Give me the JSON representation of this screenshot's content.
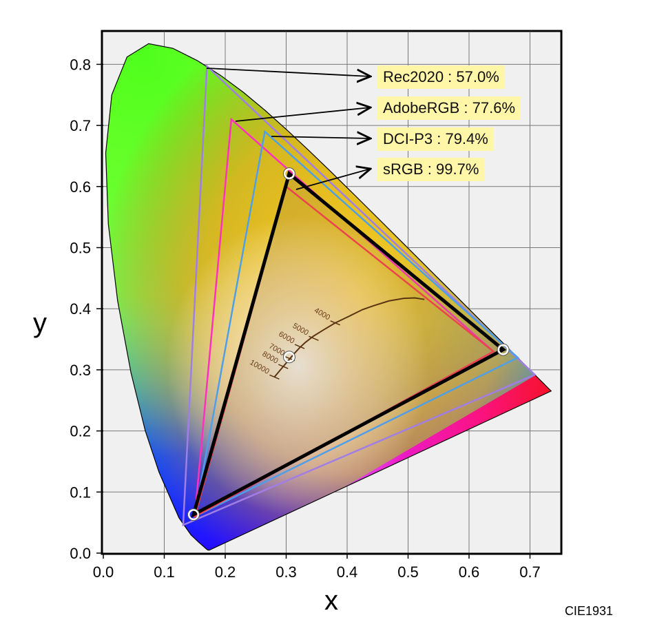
{
  "chart_data": {
    "type": "scatter",
    "title": "",
    "xlabel": "x",
    "ylabel": "y",
    "xlim": [
      0.0,
      0.75
    ],
    "ylim": [
      0.0,
      0.85
    ],
    "grid": true,
    "x_ticks": [
      "0.0",
      "0.1",
      "0.2",
      "0.3",
      "0.4",
      "0.5",
      "0.6",
      "0.7"
    ],
    "y_ticks": [
      "0.0",
      "0.1",
      "0.2",
      "0.3",
      "0.4",
      "0.5",
      "0.6",
      "0.7",
      "0.8"
    ],
    "footnote": "CIE1931",
    "spectral_locus": [
      [
        0.1741,
        0.005
      ],
      [
        0.1738,
        0.0049
      ],
      [
        0.1733,
        0.0048
      ],
      [
        0.1726,
        0.0048
      ],
      [
        0.1714,
        0.0051
      ],
      [
        0.1689,
        0.0069
      ],
      [
        0.1644,
        0.0109
      ],
      [
        0.1566,
        0.0177
      ],
      [
        0.144,
        0.0297
      ],
      [
        0.1241,
        0.0578
      ],
      [
        0.0913,
        0.1327
      ],
      [
        0.0687,
        0.2007
      ],
      [
        0.0454,
        0.295
      ],
      [
        0.0235,
        0.4127
      ],
      [
        0.0082,
        0.5384
      ],
      [
        0.0039,
        0.6548
      ],
      [
        0.0139,
        0.7502
      ],
      [
        0.0389,
        0.812
      ],
      [
        0.0743,
        0.8338
      ],
      [
        0.1142,
        0.8262
      ],
      [
        0.1547,
        0.8059
      ],
      [
        0.1929,
        0.7816
      ],
      [
        0.2296,
        0.7543
      ],
      [
        0.2658,
        0.7243
      ],
      [
        0.3016,
        0.6923
      ],
      [
        0.3373,
        0.6589
      ],
      [
        0.3731,
        0.6245
      ],
      [
        0.4087,
        0.5896
      ],
      [
        0.4441,
        0.5547
      ],
      [
        0.4788,
        0.5202
      ],
      [
        0.5125,
        0.4866
      ],
      [
        0.5448,
        0.4544
      ],
      [
        0.5752,
        0.4242
      ],
      [
        0.6029,
        0.3965
      ],
      [
        0.627,
        0.3725
      ],
      [
        0.6482,
        0.3514
      ],
      [
        0.6658,
        0.334
      ],
      [
        0.6801,
        0.3197
      ],
      [
        0.6915,
        0.3083
      ],
      [
        0.7006,
        0.2993
      ],
      [
        0.7079,
        0.292
      ],
      [
        0.714,
        0.2859
      ],
      [
        0.719,
        0.2809
      ],
      [
        0.723,
        0.277
      ],
      [
        0.726,
        0.274
      ],
      [
        0.7283,
        0.2717
      ],
      [
        0.73,
        0.27
      ],
      [
        0.7311,
        0.2689
      ],
      [
        0.732,
        0.268
      ],
      [
        0.7327,
        0.2673
      ],
      [
        0.7334,
        0.2666
      ],
      [
        0.734,
        0.266
      ],
      [
        0.7344,
        0.2656
      ],
      [
        0.7346,
        0.2654
      ],
      [
        0.7347,
        0.2653
      ]
    ],
    "series": [
      {
        "name": "Rec2020",
        "coverage_label": "Rec2020 : 57.0%",
        "color": "#a07ee6",
        "points": [
          [
            0.708,
            0.292
          ],
          [
            0.17,
            0.797
          ],
          [
            0.131,
            0.046
          ]
        ]
      },
      {
        "name": "AdobeRGB",
        "coverage_label": "AdobeRGB : 77.6%",
        "color": "#ff2fbf",
        "points": [
          [
            0.64,
            0.33
          ],
          [
            0.21,
            0.71
          ],
          [
            0.15,
            0.06
          ]
        ]
      },
      {
        "name": "DCI-P3",
        "coverage_label": "DCI-P3 : 79.4%",
        "color": "#4f9ee8",
        "points": [
          [
            0.68,
            0.32
          ],
          [
            0.265,
            0.69
          ],
          [
            0.15,
            0.06
          ]
        ]
      },
      {
        "name": "sRGB",
        "coverage_label": "sRGB : 99.7%",
        "color": "#ff3b4a",
        "points": [
          [
            0.64,
            0.33
          ],
          [
            0.3,
            0.6
          ],
          [
            0.15,
            0.06
          ]
        ]
      }
    ],
    "measured_gamut": {
      "color": "#000000",
      "points": [
        [
          0.656,
          0.333
        ],
        [
          0.305,
          0.621
        ],
        [
          0.148,
          0.063
        ]
      ]
    },
    "marker_points": [
      [
        0.305,
        0.621
      ],
      [
        0.656,
        0.333
      ],
      [
        0.148,
        0.063
      ],
      [
        0.305,
        0.321
      ]
    ],
    "planckian_locus": [
      [
        0.2807,
        0.2883
      ],
      [
        0.2858,
        0.2943
      ],
      [
        0.2952,
        0.3055
      ],
      [
        0.3041,
        0.3159
      ],
      [
        0.3135,
        0.3268
      ],
      [
        0.3217,
        0.3357
      ],
      [
        0.3312,
        0.3446
      ],
      [
        0.3447,
        0.3551
      ],
      [
        0.3608,
        0.365
      ],
      [
        0.3802,
        0.3767
      ],
      [
        0.4044,
        0.3883
      ],
      [
        0.4254,
        0.3987
      ],
      [
        0.444,
        0.4051
      ],
      [
        0.4685,
        0.4127
      ],
      [
        0.493,
        0.417
      ],
      [
        0.5113,
        0.4177
      ],
      [
        0.5268,
        0.4152
      ]
    ],
    "cct_ticks": [
      {
        "label": "10000",
        "point": [
          0.2807,
          0.2883
        ]
      },
      {
        "label": "8000",
        "point": [
          0.2952,
          0.3055
        ]
      },
      {
        "label": "7000",
        "point": [
          0.3062,
          0.3183
        ]
      },
      {
        "label": "6000",
        "point": [
          0.3221,
          0.3381
        ]
      },
      {
        "label": "5000",
        "point": [
          0.3451,
          0.3516
        ]
      },
      {
        "label": "4000",
        "point": [
          0.3805,
          0.3768
        ]
      }
    ]
  }
}
